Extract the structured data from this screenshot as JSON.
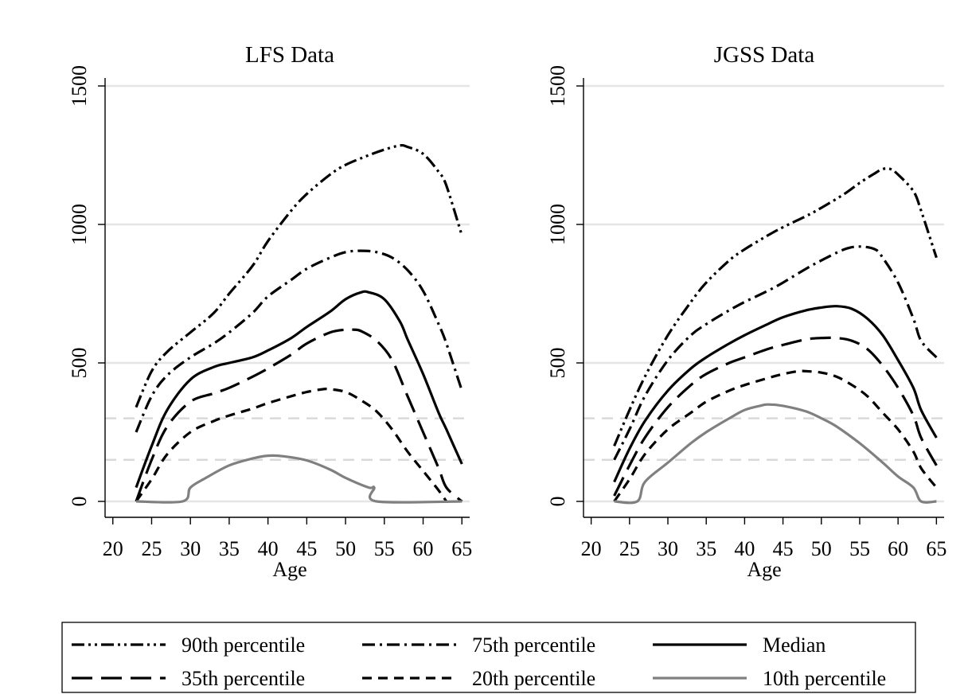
{
  "chart_data": [
    {
      "type": "line",
      "title": "LFS Data",
      "xlabel": "Age",
      "ylabel": "",
      "xlim": [
        19,
        66
      ],
      "ylim": [
        -30,
        1500
      ],
      "xticks": [
        20,
        25,
        30,
        35,
        40,
        45,
        50,
        55,
        60,
        65
      ],
      "yticks": [
        0,
        500,
        1000,
        1500
      ],
      "reference_lines": [
        150,
        300
      ],
      "grid": true,
      "series": [
        {
          "name": "90th percentile",
          "style": "dash-dot-dot",
          "color": "#000000",
          "x": [
            23,
            25,
            27,
            30,
            33,
            35,
            38,
            40,
            43,
            45,
            48,
            50,
            53,
            55,
            57,
            58,
            60,
            62,
            63,
            65
          ],
          "y": [
            340,
            470,
            540,
            610,
            680,
            750,
            850,
            940,
            1050,
            1110,
            1180,
            1215,
            1250,
            1270,
            1285,
            1280,
            1255,
            1190,
            1140,
            960
          ]
        },
        {
          "name": "75th percentile",
          "style": "dash-dot",
          "color": "#000000",
          "x": [
            23,
            25,
            27,
            30,
            33,
            35,
            38,
            40,
            43,
            45,
            48,
            50,
            52,
            54,
            56,
            58,
            60,
            62,
            63,
            65
          ],
          "y": [
            250,
            380,
            455,
            520,
            570,
            610,
            680,
            740,
            800,
            840,
            880,
            900,
            905,
            900,
            880,
            835,
            760,
            640,
            570,
            400
          ]
        },
        {
          "name": "Median",
          "style": "solid",
          "color": "#000000",
          "x": [
            23,
            25,
            27,
            30,
            33,
            35,
            38,
            40,
            43,
            45,
            48,
            50,
            52,
            53,
            55,
            57,
            58,
            60,
            62,
            63,
            65
          ],
          "y": [
            50,
            200,
            330,
            440,
            485,
            500,
            520,
            545,
            590,
            630,
            685,
            730,
            755,
            755,
            730,
            650,
            585,
            460,
            320,
            260,
            135
          ]
        },
        {
          "name": "35th percentile",
          "style": "long-dash",
          "color": "#000000",
          "x": [
            23,
            25,
            27,
            30,
            33,
            35,
            38,
            40,
            43,
            45,
            48,
            50,
            51,
            52,
            54,
            56,
            58,
            60,
            62,
            63,
            65
          ],
          "y": [
            0,
            150,
            270,
            360,
            390,
            410,
            450,
            480,
            530,
            570,
            610,
            620,
            620,
            615,
            580,
            510,
            380,
            250,
            120,
            50,
            0
          ]
        },
        {
          "name": "20th percentile",
          "style": "dash",
          "color": "#000000",
          "x": [
            23,
            25,
            27,
            30,
            33,
            35,
            38,
            40,
            43,
            45,
            47,
            48,
            50,
            52,
            54,
            56,
            58,
            60,
            62,
            63
          ],
          "y": [
            0,
            80,
            170,
            250,
            290,
            310,
            335,
            355,
            380,
            395,
            405,
            405,
            395,
            365,
            325,
            260,
            180,
            110,
            40,
            0
          ]
        },
        {
          "name": "10th percentile",
          "style": "solid",
          "color": "#808080",
          "x": [
            23,
            29,
            30,
            32,
            35,
            38,
            40,
            42,
            45,
            48,
            50,
            53,
            53.7,
            54,
            65
          ],
          "y": [
            0,
            0,
            50,
            85,
            130,
            155,
            165,
            163,
            148,
            115,
            85,
            50,
            50,
            0,
            0
          ]
        }
      ]
    },
    {
      "type": "line",
      "title": "JGSS Data",
      "xlabel": "Age",
      "ylabel": "",
      "xlim": [
        19,
        66
      ],
      "ylim": [
        -30,
        1500
      ],
      "xticks": [
        20,
        25,
        30,
        35,
        40,
        45,
        50,
        55,
        60,
        65
      ],
      "yticks": [
        0,
        500,
        1000,
        1500
      ],
      "reference_lines": [
        150,
        300
      ],
      "grid": true,
      "series": [
        {
          "name": "90th percentile",
          "style": "dash-dot-dot",
          "color": "#000000",
          "x": [
            23,
            25,
            27,
            30,
            33,
            35,
            38,
            40,
            43,
            45,
            48,
            50,
            53,
            55,
            57,
            58,
            59,
            60,
            62,
            63,
            65
          ],
          "y": [
            200,
            330,
            450,
            600,
            720,
            790,
            870,
            910,
            960,
            990,
            1030,
            1060,
            1110,
            1150,
            1185,
            1200,
            1200,
            1180,
            1120,
            1050,
            880
          ]
        },
        {
          "name": "75th percentile",
          "style": "dash-dot",
          "color": "#000000",
          "x": [
            23,
            25,
            27,
            30,
            33,
            35,
            38,
            40,
            43,
            45,
            48,
            50,
            53,
            55,
            57,
            58,
            60,
            62,
            63,
            65
          ],
          "y": [
            150,
            260,
            380,
            510,
            600,
            640,
            690,
            720,
            760,
            790,
            840,
            870,
            910,
            920,
            910,
            880,
            790,
            660,
            580,
            520
          ]
        },
        {
          "name": "Median",
          "style": "solid",
          "color": "#000000",
          "x": [
            23,
            25,
            27,
            30,
            33,
            35,
            38,
            40,
            43,
            45,
            48,
            50,
            52,
            54,
            56,
            58,
            60,
            62,
            63,
            65
          ],
          "y": [
            70,
            190,
            290,
            400,
            480,
            520,
            570,
            600,
            640,
            665,
            690,
            700,
            705,
            695,
            660,
            600,
            510,
            410,
            330,
            230
          ]
        },
        {
          "name": "35th percentile",
          "style": "long-dash",
          "color": "#000000",
          "x": [
            23,
            25,
            27,
            30,
            33,
            35,
            38,
            40,
            43,
            45,
            48,
            50,
            52,
            54,
            56,
            58,
            60,
            62,
            63,
            65
          ],
          "y": [
            20,
            130,
            230,
            340,
            420,
            460,
            500,
            520,
            550,
            565,
            585,
            590,
            590,
            580,
            550,
            490,
            410,
            310,
            230,
            130
          ]
        },
        {
          "name": "20th percentile",
          "style": "dash",
          "color": "#000000",
          "x": [
            23,
            25,
            27,
            30,
            33,
            35,
            38,
            40,
            43,
            45,
            47,
            48,
            50,
            52,
            54,
            56,
            58,
            60,
            62,
            63,
            65
          ],
          "y": [
            0,
            80,
            170,
            260,
            320,
            360,
            400,
            420,
            445,
            460,
            470,
            470,
            465,
            450,
            420,
            380,
            320,
            260,
            180,
            120,
            50
          ]
        },
        {
          "name": "10th percentile",
          "style": "solid",
          "color": "#808080",
          "x": [
            23,
            26,
            27,
            30,
            33,
            35,
            38,
            40,
            42,
            43,
            45,
            48,
            50,
            52,
            55,
            58,
            60,
            62,
            63,
            65
          ],
          "y": [
            0,
            0,
            70,
            140,
            210,
            250,
            300,
            330,
            345,
            350,
            345,
            325,
            300,
            270,
            210,
            140,
            90,
            50,
            0,
            0
          ]
        }
      ]
    }
  ],
  "legend": {
    "placement": "bottom",
    "columns": 3,
    "entries": [
      {
        "label": "90th percentile",
        "style": "dash-dot-dot",
        "color": "#000000"
      },
      {
        "label": "75th percentile",
        "style": "dash-dot",
        "color": "#000000"
      },
      {
        "label": "Median",
        "style": "solid",
        "color": "#000000"
      },
      {
        "label": "35th percentile",
        "style": "long-dash",
        "color": "#000000"
      },
      {
        "label": "20th percentile",
        "style": "dash",
        "color": "#000000"
      },
      {
        "label": "10th percentile",
        "style": "solid",
        "color": "#808080"
      }
    ]
  },
  "colors": {
    "grid": "#e5e5e5",
    "reference_line": "#d9d9d9",
    "axis": "#000000"
  }
}
